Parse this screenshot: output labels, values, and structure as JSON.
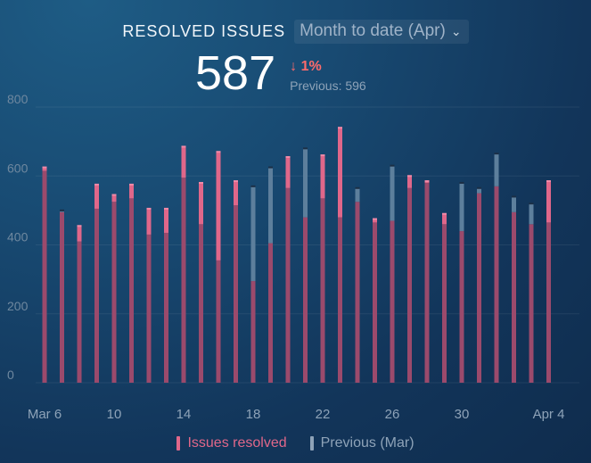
{
  "header": {
    "title": "RESOLVED ISSUES",
    "range_label": "Month to date (Apr)",
    "value": "587",
    "delta": "1%",
    "previous": "Previous: 596"
  },
  "colors": {
    "current": "#e0678a",
    "previous": "#5d7f9c",
    "delta_down": "#ff6b6b"
  },
  "icons": {
    "delta": "arrow-down-icon",
    "range": "chevron-down-icon"
  },
  "legend": {
    "current": "Issues resolved",
    "previous": "Previous (Mar)"
  },
  "chart_data": {
    "type": "bar",
    "ylim": [
      0,
      800
    ],
    "yticks": [
      0,
      200,
      400,
      600,
      800
    ],
    "xtick_labels": [
      {
        "i": 0,
        "label": "Mar 6"
      },
      {
        "i": 4,
        "label": "10"
      },
      {
        "i": 8,
        "label": "14"
      },
      {
        "i": 12,
        "label": "18"
      },
      {
        "i": 16,
        "label": "22"
      },
      {
        "i": 20,
        "label": "26"
      },
      {
        "i": 24,
        "label": "30"
      },
      {
        "i": 29,
        "label": "Apr 4"
      }
    ],
    "categories": [
      "Mar 6",
      "Mar 7",
      "Mar 8",
      "Mar 9",
      "Mar 10",
      "Mar 11",
      "Mar 12",
      "Mar 13",
      "Mar 14",
      "Mar 15",
      "Mar 16",
      "Mar 17",
      "Mar 18",
      "Mar 19",
      "Mar 20",
      "Mar 21",
      "Mar 22",
      "Mar 23",
      "Mar 24",
      "Mar 25",
      "Mar 26",
      "Mar 27",
      "Mar 28",
      "Mar 29",
      "Mar 30",
      "Mar 31",
      "Apr 1",
      "Apr 2",
      "Apr 3",
      "Apr 4"
    ],
    "series": [
      {
        "name": "Issues resolved",
        "values": [
          625,
          495,
          455,
          575,
          545,
          575,
          505,
          505,
          685,
          580,
          670,
          585,
          295,
          405,
          655,
          480,
          660,
          740,
          525,
          475,
          470,
          600,
          585,
          490,
          440,
          550,
          570,
          495,
          460,
          585
        ]
      },
      {
        "name": "Previous (Mar)",
        "values": [
          615,
          500,
          410,
          505,
          525,
          535,
          430,
          435,
          595,
          460,
          355,
          515,
          570,
          625,
          565,
          680,
          535,
          480,
          565,
          465,
          630,
          565,
          580,
          460,
          580,
          565,
          665,
          540,
          520,
          465
        ]
      }
    ]
  }
}
